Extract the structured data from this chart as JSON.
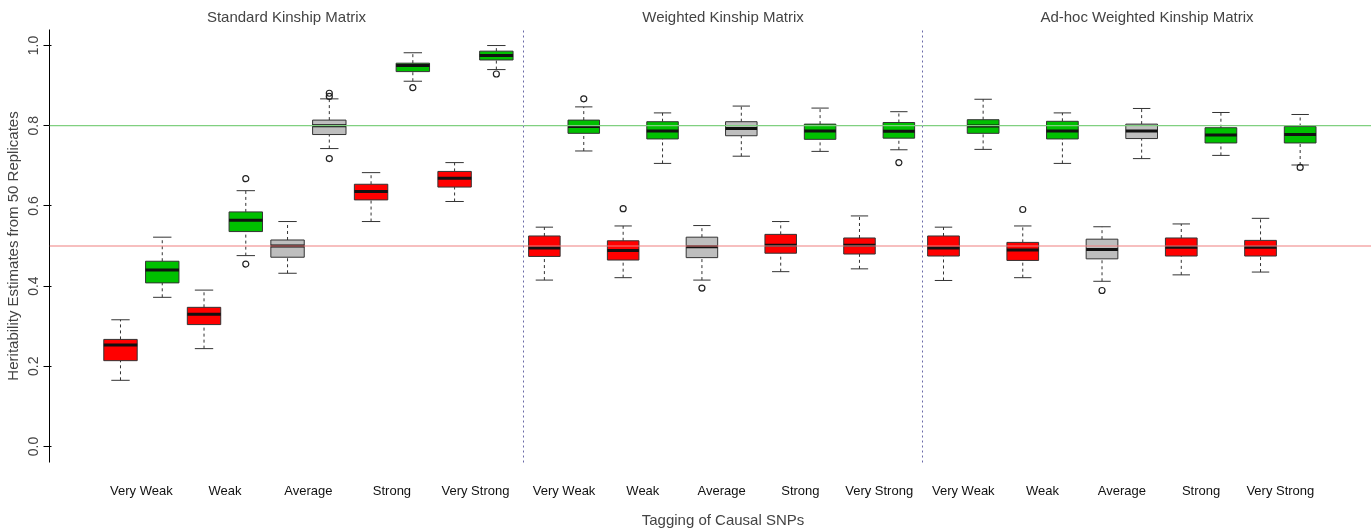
{
  "chart_data": [
    {
      "type": "box",
      "title": "Standard Kinship Matrix",
      "ylabel": "Heritability Estimates from 50 Replicates",
      "categories": [
        "Very Weak",
        "Weak",
        "Average",
        "Strong",
        "Very Strong"
      ],
      "ylim": [
        -0.04,
        1.04
      ],
      "yticks": [
        {
          "value": 0,
          "label": "0.0"
        },
        {
          "value": 0.2,
          "label": "0.2"
        },
        {
          "value": 0.4,
          "label": "0.4"
        },
        {
          "value": 0.6,
          "label": "0.6"
        },
        {
          "value": 0.8,
          "label": "0.8"
        },
        {
          "value": 1,
          "label": "1.0"
        }
      ],
      "grid": false,
      "ref_lines": [
        {
          "axis": "y",
          "value": 0.5,
          "color": "#f08080"
        },
        {
          "axis": "y",
          "value": 0.8,
          "color": "#80d080"
        }
      ],
      "series": [
        {
          "colors": [
            "#ff0000",
            "#ff0000",
            "#bebebe",
            "#ff0000",
            "#ff0000"
          ],
          "boxes": [
            {
              "low": 0.165,
              "q1": 0.214,
              "median": 0.253,
              "q3": 0.267,
              "high": 0.316
            },
            {
              "low": 0.244,
              "q1": 0.304,
              "median": 0.33,
              "q3": 0.347,
              "high": 0.39
            },
            {
              "low": 0.432,
              "q1": 0.472,
              "median": 0.5,
              "q3": 0.515,
              "high": 0.561
            },
            {
              "low": 0.561,
              "q1": 0.615,
              "median": 0.636,
              "q3": 0.654,
              "high": 0.683
            },
            {
              "low": 0.611,
              "q1": 0.647,
              "median": 0.669,
              "q3": 0.686,
              "high": 0.708
            }
          ]
        },
        {
          "colors": [
            "#00c000",
            "#00c000",
            "#bebebe",
            "#00c000",
            "#00c000"
          ],
          "boxes": [
            {
              "low": 0.372,
              "q1": 0.408,
              "median": 0.44,
              "q3": 0.462,
              "high": 0.522
            },
            {
              "low": 0.476,
              "q1": 0.536,
              "median": 0.564,
              "q3": 0.585,
              "high": 0.638,
              "outliers": [
                0.668,
                0.455
              ]
            },
            {
              "low": 0.743,
              "q1": 0.778,
              "median": 0.8,
              "q3": 0.814,
              "high": 0.867,
              "outliers": [
                0.881,
                0.873,
                0.718
              ]
            },
            {
              "low": 0.911,
              "q1": 0.935,
              "median": 0.95,
              "q3": 0.956,
              "high": 0.982,
              "outliers": [
                0.895
              ]
            },
            {
              "low": 0.94,
              "q1": 0.964,
              "median": 0.975,
              "q3": 0.986,
              "high": 1.0,
              "outliers": [
                0.929
              ]
            }
          ]
        }
      ]
    },
    {
      "type": "box",
      "title": "Weighted Kinship Matrix",
      "xlabel": "Tagging of Causal SNPs",
      "categories": [
        "Very Weak",
        "Weak",
        "Average",
        "Strong",
        "Very Strong"
      ],
      "ylim": [
        -0.04,
        1.04
      ],
      "tick_labels": "x",
      "grid": false,
      "ref_lines": [
        {
          "axis": "y",
          "value": 0.5,
          "color": "#f08080"
        },
        {
          "axis": "y",
          "value": 0.8,
          "color": "#80d080"
        }
      ],
      "series": [
        {
          "colors": [
            "#ff0000",
            "#ff0000",
            "#bebebe",
            "#ff0000",
            "#ff0000"
          ],
          "boxes": [
            {
              "low": 0.415,
              "q1": 0.474,
              "median": 0.495,
              "q3": 0.525,
              "high": 0.547
            },
            {
              "low": 0.421,
              "q1": 0.465,
              "median": 0.489,
              "q3": 0.513,
              "high": 0.55,
              "outliers": [
                0.593
              ]
            },
            {
              "low": 0.415,
              "q1": 0.471,
              "median": 0.498,
              "q3": 0.522,
              "high": 0.551,
              "outliers": [
                0.395
              ]
            },
            {
              "low": 0.436,
              "q1": 0.482,
              "median": 0.502,
              "q3": 0.529,
              "high": 0.561
            },
            {
              "low": 0.443,
              "q1": 0.48,
              "median": 0.502,
              "q3": 0.52,
              "high": 0.575
            }
          ]
        },
        {
          "colors": [
            "#00c000",
            "#00c000",
            "#bebebe",
            "#00c000",
            "#00c000"
          ],
          "boxes": [
            {
              "low": 0.737,
              "q1": 0.781,
              "median": 0.798,
              "q3": 0.814,
              "high": 0.847,
              "outliers": [
                0.867
              ]
            },
            {
              "low": 0.706,
              "q1": 0.767,
              "median": 0.787,
              "q3": 0.81,
              "high": 0.832
            },
            {
              "low": 0.724,
              "q1": 0.775,
              "median": 0.793,
              "q3": 0.81,
              "high": 0.849
            },
            {
              "low": 0.736,
              "q1": 0.766,
              "median": 0.787,
              "q3": 0.804,
              "high": 0.844
            },
            {
              "low": 0.74,
              "q1": 0.769,
              "median": 0.786,
              "q3": 0.808,
              "high": 0.835,
              "outliers": [
                0.708
              ]
            }
          ]
        }
      ]
    },
    {
      "type": "box",
      "title": "Ad-hoc Weighted Kinship Matrix",
      "categories": [
        "Very Weak",
        "Weak",
        "Average",
        "Strong",
        "Very Strong"
      ],
      "ylim": [
        -0.04,
        1.04
      ],
      "tick_labels": "x",
      "grid": false,
      "ref_lines": [
        {
          "axis": "y",
          "value": 0.5,
          "color": "#f08080"
        },
        {
          "axis": "y",
          "value": 0.8,
          "color": "#80d080"
        }
      ],
      "series": [
        {
          "colors": [
            "#ff0000",
            "#ff0000",
            "#bebebe",
            "#ff0000",
            "#ff0000"
          ],
          "boxes": [
            {
              "low": 0.414,
              "q1": 0.475,
              "median": 0.495,
              "q3": 0.525,
              "high": 0.547
            },
            {
              "low": 0.421,
              "q1": 0.464,
              "median": 0.49,
              "q3": 0.509,
              "high": 0.55,
              "outliers": [
                0.591
              ]
            },
            {
              "low": 0.412,
              "q1": 0.468,
              "median": 0.491,
              "q3": 0.517,
              "high": 0.548,
              "outliers": [
                0.389
              ]
            },
            {
              "low": 0.428,
              "q1": 0.475,
              "median": 0.497,
              "q3": 0.52,
              "high": 0.555
            },
            {
              "low": 0.435,
              "q1": 0.475,
              "median": 0.497,
              "q3": 0.514,
              "high": 0.569
            }
          ]
        },
        {
          "colors": [
            "#00c000",
            "#00c000",
            "#bebebe",
            "#00c000",
            "#00c000"
          ],
          "boxes": [
            {
              "low": 0.741,
              "q1": 0.781,
              "median": 0.799,
              "q3": 0.815,
              "high": 0.866
            },
            {
              "low": 0.706,
              "q1": 0.767,
              "median": 0.787,
              "q3": 0.811,
              "high": 0.832
            },
            {
              "low": 0.718,
              "q1": 0.768,
              "median": 0.787,
              "q3": 0.804,
              "high": 0.843
            },
            {
              "low": 0.726,
              "q1": 0.757,
              "median": 0.777,
              "q3": 0.795,
              "high": 0.833
            },
            {
              "low": 0.702,
              "q1": 0.757,
              "median": 0.778,
              "q3": 0.798,
              "high": 0.828,
              "outliers": [
                0.696
              ]
            }
          ]
        }
      ]
    }
  ]
}
